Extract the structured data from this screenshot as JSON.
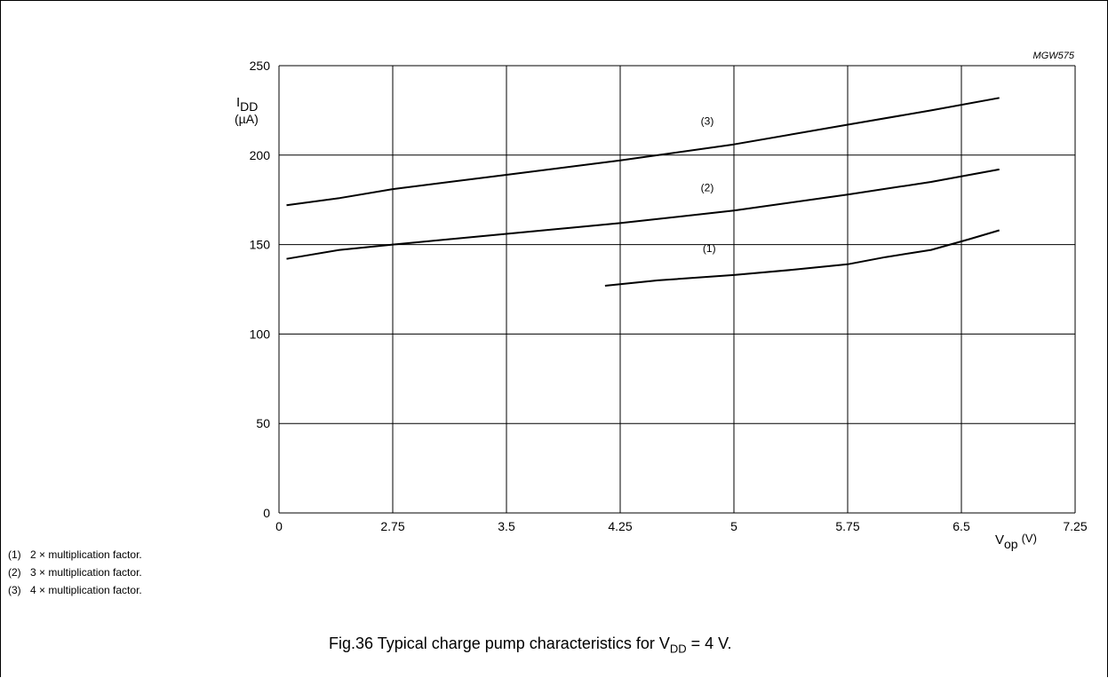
{
  "chart_data": {
    "type": "line",
    "code": "MGW575",
    "ylabel_main": "I",
    "ylabel_sub": "DD",
    "ylabel_unit": "(µA)",
    "xlabel_main": "V",
    "xlabel_sub": "op",
    "xlabel_unit": "(V)",
    "xlim": [
      2,
      7.25
    ],
    "ylim": [
      0,
      250
    ],
    "x_ticks": [
      "0",
      "2.75",
      "3.5",
      "4.25",
      "5",
      "5.75",
      "6.5",
      "7.25"
    ],
    "y_ticks": [
      "0",
      "50",
      "100",
      "150",
      "200",
      "250"
    ],
    "grid": true,
    "series": [
      {
        "name": "(1)",
        "x": [
          4.15,
          4.5,
          5.0,
          5.4,
          5.75,
          6.0,
          6.3,
          6.55,
          6.75
        ],
        "y": [
          127,
          130,
          133,
          136,
          139,
          143,
          147,
          153,
          158
        ]
      },
      {
        "name": "(2)",
        "x": [
          2.05,
          2.4,
          2.75,
          3.5,
          4.25,
          5.0,
          5.75,
          6.3,
          6.75
        ],
        "y": [
          142,
          147,
          150,
          156,
          162,
          169,
          178,
          185,
          192
        ]
      },
      {
        "name": "(3)",
        "x": [
          2.05,
          2.4,
          2.75,
          3.5,
          4.25,
          5.0,
          5.75,
          6.3,
          6.75
        ],
        "y": [
          172,
          176,
          181,
          189,
          197,
          206,
          217,
          225,
          232
        ]
      }
    ]
  },
  "legend": [
    {
      "num": "(1)",
      "text": "2 × multiplication factor."
    },
    {
      "num": "(2)",
      "text": "3 × multiplication factor."
    },
    {
      "num": "(3)",
      "text": "4 × multiplication factor."
    }
  ],
  "caption": {
    "prefix": "Fig.36  Typical charge pump characteristics for V",
    "sub": "DD",
    "suffix": " = 4 V."
  }
}
